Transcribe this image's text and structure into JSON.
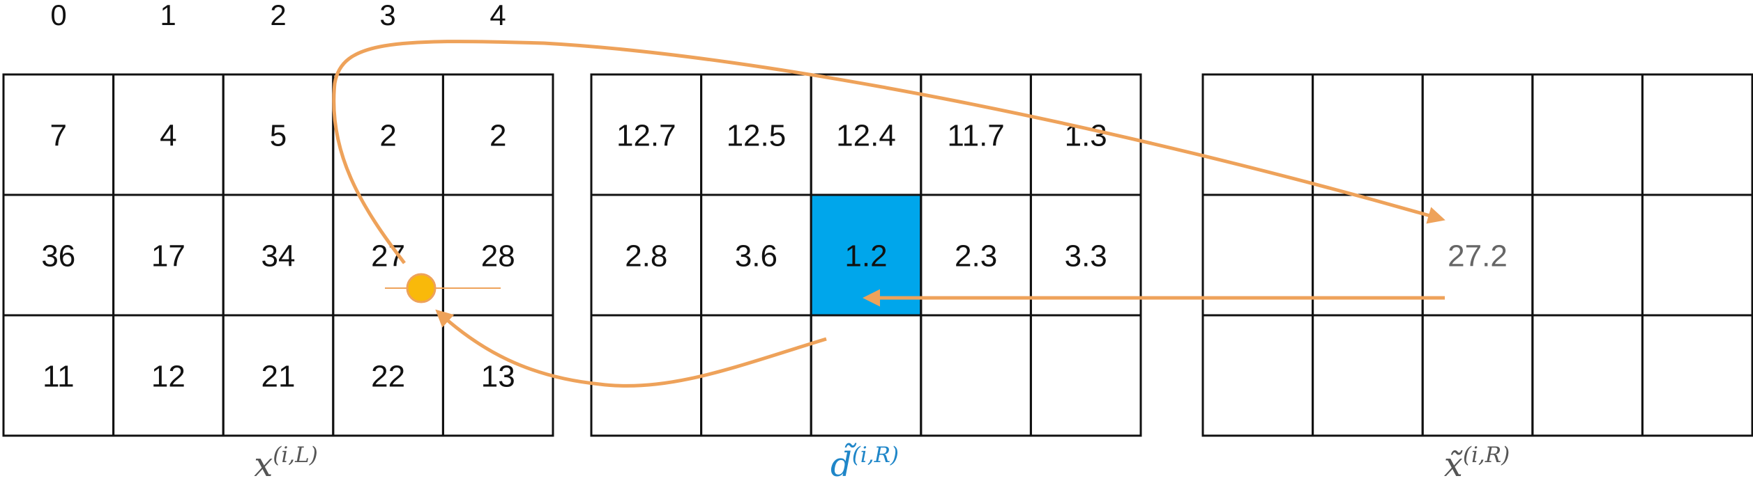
{
  "column_indices": [
    "0",
    "1",
    "2",
    "3",
    "4"
  ],
  "grids": [
    {
      "id": "left",
      "label": {
        "main": "x",
        "sup": "(i,L)",
        "color": "#555555"
      },
      "rows": [
        [
          "7",
          "4",
          "5",
          "2",
          "2"
        ],
        [
          "36",
          "17",
          "34",
          "27",
          "28"
        ],
        [
          "11",
          "12",
          "21",
          "22",
          "13"
        ]
      ]
    },
    {
      "id": "middle",
      "label": {
        "main": "d̃",
        "sup": "(i,R)",
        "color": "#1f86c8"
      },
      "rows": [
        [
          "12.7",
          "12.5",
          "12.4",
          "11.7",
          "1.3"
        ],
        [
          "2.8",
          "3.6",
          "1.2",
          "2.3",
          "3.3"
        ],
        [
          "",
          "",
          "",
          "",
          ""
        ]
      ],
      "highlight": {
        "row": 1,
        "col": 2,
        "color": "#00a6eb"
      }
    },
    {
      "id": "right",
      "label": {
        "main": "x̃",
        "sup": "(i,R)",
        "color": "#555555"
      },
      "rows": [
        [
          "",
          "",
          "",
          "",
          ""
        ],
        [
          "",
          "",
          "27.2",
          "",
          ""
        ],
        [
          "",
          "",
          "",
          "",
          ""
        ]
      ]
    }
  ],
  "colors": {
    "arrow": "#eea25a",
    "marker_fill": "#f9b90a",
    "marker_stroke": "#eea25a"
  }
}
